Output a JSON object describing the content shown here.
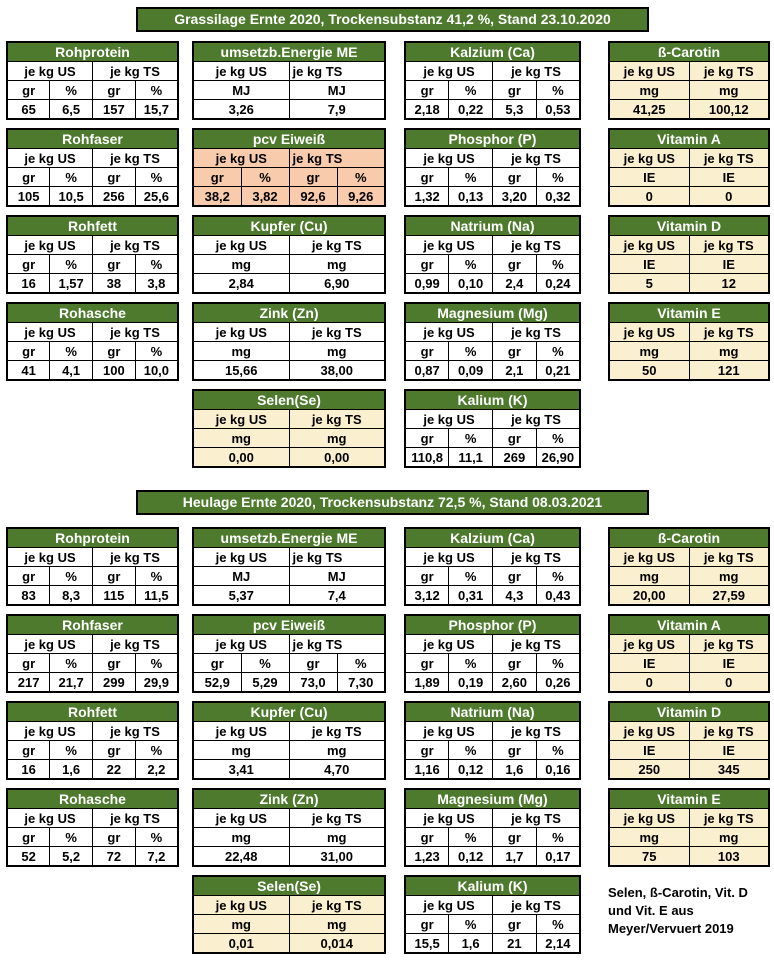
{
  "colors": {
    "header_green": "#4D7A2D",
    "cream": "#FAEFCE",
    "salmon": "#F8CBAD",
    "border": "#000000",
    "header_text": "#FFFFFF",
    "text": "#000000"
  },
  "sections": [
    {
      "title": "Grassilage Ernte 2020, Trockensubstanz 41,2 %, Stand 23.10.2020",
      "rows": [
        [
          {
            "name": "Rohprotein",
            "col": 0,
            "variant": "white",
            "subheaders": [
              "je kg US",
              "je kg TS"
            ],
            "units": [
              "gr",
              "%",
              "gr",
              "%"
            ],
            "values": [
              "65",
              "6,5",
              "157",
              "15,7"
            ]
          },
          {
            "name": "umsetzb.Energie ME",
            "col": 1,
            "variant": "white",
            "ts_left": true,
            "subheaders": [
              "je kg US",
              "je kg TS"
            ],
            "units": [
              "MJ",
              "MJ"
            ],
            "values": [
              "3,26",
              "7,9"
            ]
          },
          {
            "name": "Kalzium (Ca)",
            "col": 2,
            "variant": "white",
            "subheaders": [
              "je kg US",
              "je kg TS"
            ],
            "units": [
              "gr",
              "%",
              "gr",
              "%"
            ],
            "values": [
              "2,18",
              "0,22",
              "5,3",
              "0,53"
            ]
          },
          {
            "name": "ß-Carotin",
            "col": 3,
            "variant": "cream",
            "subheaders": [
              "je kg US",
              "je kg TS"
            ],
            "units": [
              "mg",
              "mg"
            ],
            "values": [
              "41,25",
              "100,12"
            ]
          }
        ],
        [
          {
            "name": "Rohfaser",
            "col": 0,
            "variant": "white",
            "subheaders": [
              "je kg US",
              "je kg TS"
            ],
            "units": [
              "gr",
              "%",
              "gr",
              "%"
            ],
            "values": [
              "105",
              "10,5",
              "256",
              "25,6"
            ]
          },
          {
            "name": "pcv Eiweiß",
            "col": 1,
            "variant": "salmon",
            "ts_left": true,
            "subheaders": [
              "je kg US",
              "je kg TS"
            ],
            "units": [
              "gr",
              "%",
              "gr",
              "%"
            ],
            "values": [
              "38,2",
              "3,82",
              "92,6",
              "9,26"
            ]
          },
          {
            "name": "Phosphor (P)",
            "col": 2,
            "variant": "white",
            "subheaders": [
              "je kg US",
              "je kg TS"
            ],
            "units": [
              "gr",
              "%",
              "gr",
              "%"
            ],
            "values": [
              "1,32",
              "0,13",
              "3,20",
              "0,32"
            ]
          },
          {
            "name": "Vitamin A",
            "col": 3,
            "variant": "cream",
            "subheaders": [
              "je kg US",
              "je kg TS"
            ],
            "units": [
              "IE",
              "IE"
            ],
            "values": [
              "0",
              "0"
            ]
          }
        ],
        [
          {
            "name": "Rohfett",
            "col": 0,
            "variant": "white",
            "subheaders": [
              "je kg US",
              "je kg TS"
            ],
            "units": [
              "gr",
              "%",
              "gr",
              "%"
            ],
            "values": [
              "16",
              "1,57",
              "38",
              "3,8"
            ]
          },
          {
            "name": "Kupfer (Cu)",
            "col": 1,
            "variant": "white",
            "subheaders": [
              "je kg US",
              "je kg TS"
            ],
            "units": [
              "mg",
              "mg"
            ],
            "values": [
              "2,84",
              "6,90"
            ]
          },
          {
            "name": "Natrium (Na)",
            "col": 2,
            "variant": "white",
            "subheaders": [
              "je kg US",
              "je kg TS"
            ],
            "units": [
              "gr",
              "%",
              "gr",
              "%"
            ],
            "values": [
              "0,99",
              "0,10",
              "2,4",
              "0,24"
            ]
          },
          {
            "name": "Vitamin D",
            "col": 3,
            "variant": "cream",
            "subheaders": [
              "je kg US",
              "je kg TS"
            ],
            "units": [
              "IE",
              "IE"
            ],
            "values": [
              "5",
              "12"
            ]
          }
        ],
        [
          {
            "name": "Rohasche",
            "col": 0,
            "variant": "white",
            "subheaders": [
              "je kg US",
              "je kg TS"
            ],
            "units": [
              "gr",
              "%",
              "gr",
              "%"
            ],
            "values": [
              "41",
              "4,1",
              "100",
              "10,0"
            ]
          },
          {
            "name": "Zink (Zn)",
            "col": 1,
            "variant": "white",
            "subheaders": [
              "je kg US",
              "je kg TS"
            ],
            "units": [
              "mg",
              "mg"
            ],
            "values": [
              "15,66",
              "38,00"
            ]
          },
          {
            "name": "Magnesium (Mg)",
            "col": 2,
            "variant": "white",
            "subheaders": [
              "je kg US",
              "je kg TS"
            ],
            "units": [
              "gr",
              "%",
              "gr",
              "%"
            ],
            "values": [
              "0,87",
              "0,09",
              "2,1",
              "0,21"
            ]
          },
          {
            "name": "Vitamin E",
            "col": 3,
            "variant": "cream",
            "subheaders": [
              "je kg US",
              "je kg TS"
            ],
            "units": [
              "mg",
              "mg"
            ],
            "values": [
              "50",
              "121"
            ]
          }
        ],
        [
          {
            "name": "Selen(Se)",
            "col": 1,
            "variant": "cream",
            "subheaders": [
              "je kg US",
              "je kg TS"
            ],
            "units": [
              "mg",
              "mg"
            ],
            "values": [
              "0,00",
              "0,00"
            ]
          },
          {
            "name": "Kalium (K)",
            "col": 2,
            "variant": "white",
            "subheaders": [
              "je kg US",
              "je kg TS"
            ],
            "units": [
              "gr",
              "%",
              "gr",
              "%"
            ],
            "values": [
              "110,8",
              "11,1",
              "269",
              "26,90"
            ]
          }
        ]
      ]
    },
    {
      "title": "Heulage Ernte 2020, Trockensubstanz 72,5 %, Stand 08.03.2021",
      "rows": [
        [
          {
            "name": "Rohprotein",
            "col": 0,
            "variant": "white",
            "subheaders": [
              "je kg US",
              "je kg TS"
            ],
            "units": [
              "gr",
              "%",
              "gr",
              "%"
            ],
            "values": [
              "83",
              "8,3",
              "115",
              "11,5"
            ]
          },
          {
            "name": "umsetzb.Energie ME",
            "col": 1,
            "variant": "white",
            "ts_left": true,
            "subheaders": [
              "je kg US",
              "je kg TS"
            ],
            "units": [
              "MJ",
              "MJ"
            ],
            "values": [
              "5,37",
              "7,4"
            ]
          },
          {
            "name": "Kalzium (Ca)",
            "col": 2,
            "variant": "white",
            "subheaders": [
              "je kg US",
              "je kg TS"
            ],
            "units": [
              "gr",
              "%",
              "gr",
              "%"
            ],
            "values": [
              "3,12",
              "0,31",
              "4,3",
              "0,43"
            ]
          },
          {
            "name": "ß-Carotin",
            "col": 3,
            "variant": "cream",
            "subheaders": [
              "je kg US",
              "je kg TS"
            ],
            "units": [
              "mg",
              "mg"
            ],
            "values": [
              "20,00",
              "27,59"
            ]
          }
        ],
        [
          {
            "name": "Rohfaser",
            "col": 0,
            "variant": "white",
            "subheaders": [
              "je kg US",
              "je kg TS"
            ],
            "units": [
              "gr",
              "%",
              "gr",
              "%"
            ],
            "values": [
              "217",
              "21,7",
              "299",
              "29,9"
            ]
          },
          {
            "name": "pcv Eiweiß",
            "col": 1,
            "variant": "white",
            "ts_left": true,
            "subheaders": [
              "je kg US",
              "je kg TS"
            ],
            "units": [
              "gr",
              "%",
              "gr",
              "%"
            ],
            "values": [
              "52,9",
              "5,29",
              "73,0",
              "7,30"
            ]
          },
          {
            "name": "Phosphor (P)",
            "col": 2,
            "variant": "white",
            "subheaders": [
              "je kg US",
              "je kg TS"
            ],
            "units": [
              "gr",
              "%",
              "gr",
              "%"
            ],
            "values": [
              "1,89",
              "0,19",
              "2,60",
              "0,26"
            ]
          },
          {
            "name": "Vitamin A",
            "col": 3,
            "variant": "cream",
            "subheaders": [
              "je kg US",
              "je kg TS"
            ],
            "units": [
              "IE",
              "IE"
            ],
            "values": [
              "0",
              "0"
            ]
          }
        ],
        [
          {
            "name": "Rohfett",
            "col": 0,
            "variant": "white",
            "subheaders": [
              "je kg US",
              "je kg TS"
            ],
            "units": [
              "gr",
              "%",
              "gr",
              "%"
            ],
            "values": [
              "16",
              "1,6",
              "22",
              "2,2"
            ]
          },
          {
            "name": "Kupfer (Cu)",
            "col": 1,
            "variant": "white",
            "subheaders": [
              "je kg US",
              "je kg TS"
            ],
            "units": [
              "mg",
              "mg"
            ],
            "values": [
              "3,41",
              "4,70"
            ]
          },
          {
            "name": "Natrium (Na)",
            "col": 2,
            "variant": "white",
            "subheaders": [
              "je kg US",
              "je kg TS"
            ],
            "units": [
              "gr",
              "%",
              "gr",
              "%"
            ],
            "values": [
              "1,16",
              "0,12",
              "1,6",
              "0,16"
            ]
          },
          {
            "name": "Vitamin D",
            "col": 3,
            "variant": "cream",
            "subheaders": [
              "je kg US",
              "je kg TS"
            ],
            "units": [
              "IE",
              "IE"
            ],
            "values": [
              "250",
              "345"
            ]
          }
        ],
        [
          {
            "name": "Rohasche",
            "col": 0,
            "variant": "white",
            "subheaders": [
              "je kg US",
              "je kg TS"
            ],
            "units": [
              "gr",
              "%",
              "gr",
              "%"
            ],
            "values": [
              "52",
              "5,2",
              "72",
              "7,2"
            ]
          },
          {
            "name": "Zink (Zn)",
            "col": 1,
            "variant": "white",
            "subheaders": [
              "je kg US",
              "je kg TS"
            ],
            "units": [
              "mg",
              "mg"
            ],
            "values": [
              "22,48",
              "31,00"
            ]
          },
          {
            "name": "Magnesium (Mg)",
            "col": 2,
            "variant": "white",
            "subheaders": [
              "je kg US",
              "je kg TS"
            ],
            "units": [
              "gr",
              "%",
              "gr",
              "%"
            ],
            "values": [
              "1,23",
              "0,12",
              "1,7",
              "0,17"
            ]
          },
          {
            "name": "Vitamin E",
            "col": 3,
            "variant": "cream",
            "subheaders": [
              "je kg US",
              "je kg TS"
            ],
            "units": [
              "mg",
              "mg"
            ],
            "values": [
              "75",
              "103"
            ]
          }
        ],
        [
          {
            "name": "Selen(Se)",
            "col": 1,
            "variant": "cream",
            "subheaders": [
              "je kg US",
              "je kg TS"
            ],
            "units": [
              "mg",
              "mg"
            ],
            "values": [
              "0,01",
              "0,014"
            ]
          },
          {
            "name": "Kalium (K)",
            "col": 2,
            "variant": "white",
            "subheaders": [
              "je kg US",
              "je kg TS"
            ],
            "units": [
              "gr",
              "%",
              "gr",
              "%"
            ],
            "values": [
              "15,5",
              "1,6",
              "21",
              "2,14"
            ]
          }
        ]
      ]
    }
  ],
  "note": {
    "lines": [
      "Selen, ß-Carotin, Vit. D",
      "und Vit. E aus",
      "Meyer/Vervuert 2019"
    ]
  }
}
